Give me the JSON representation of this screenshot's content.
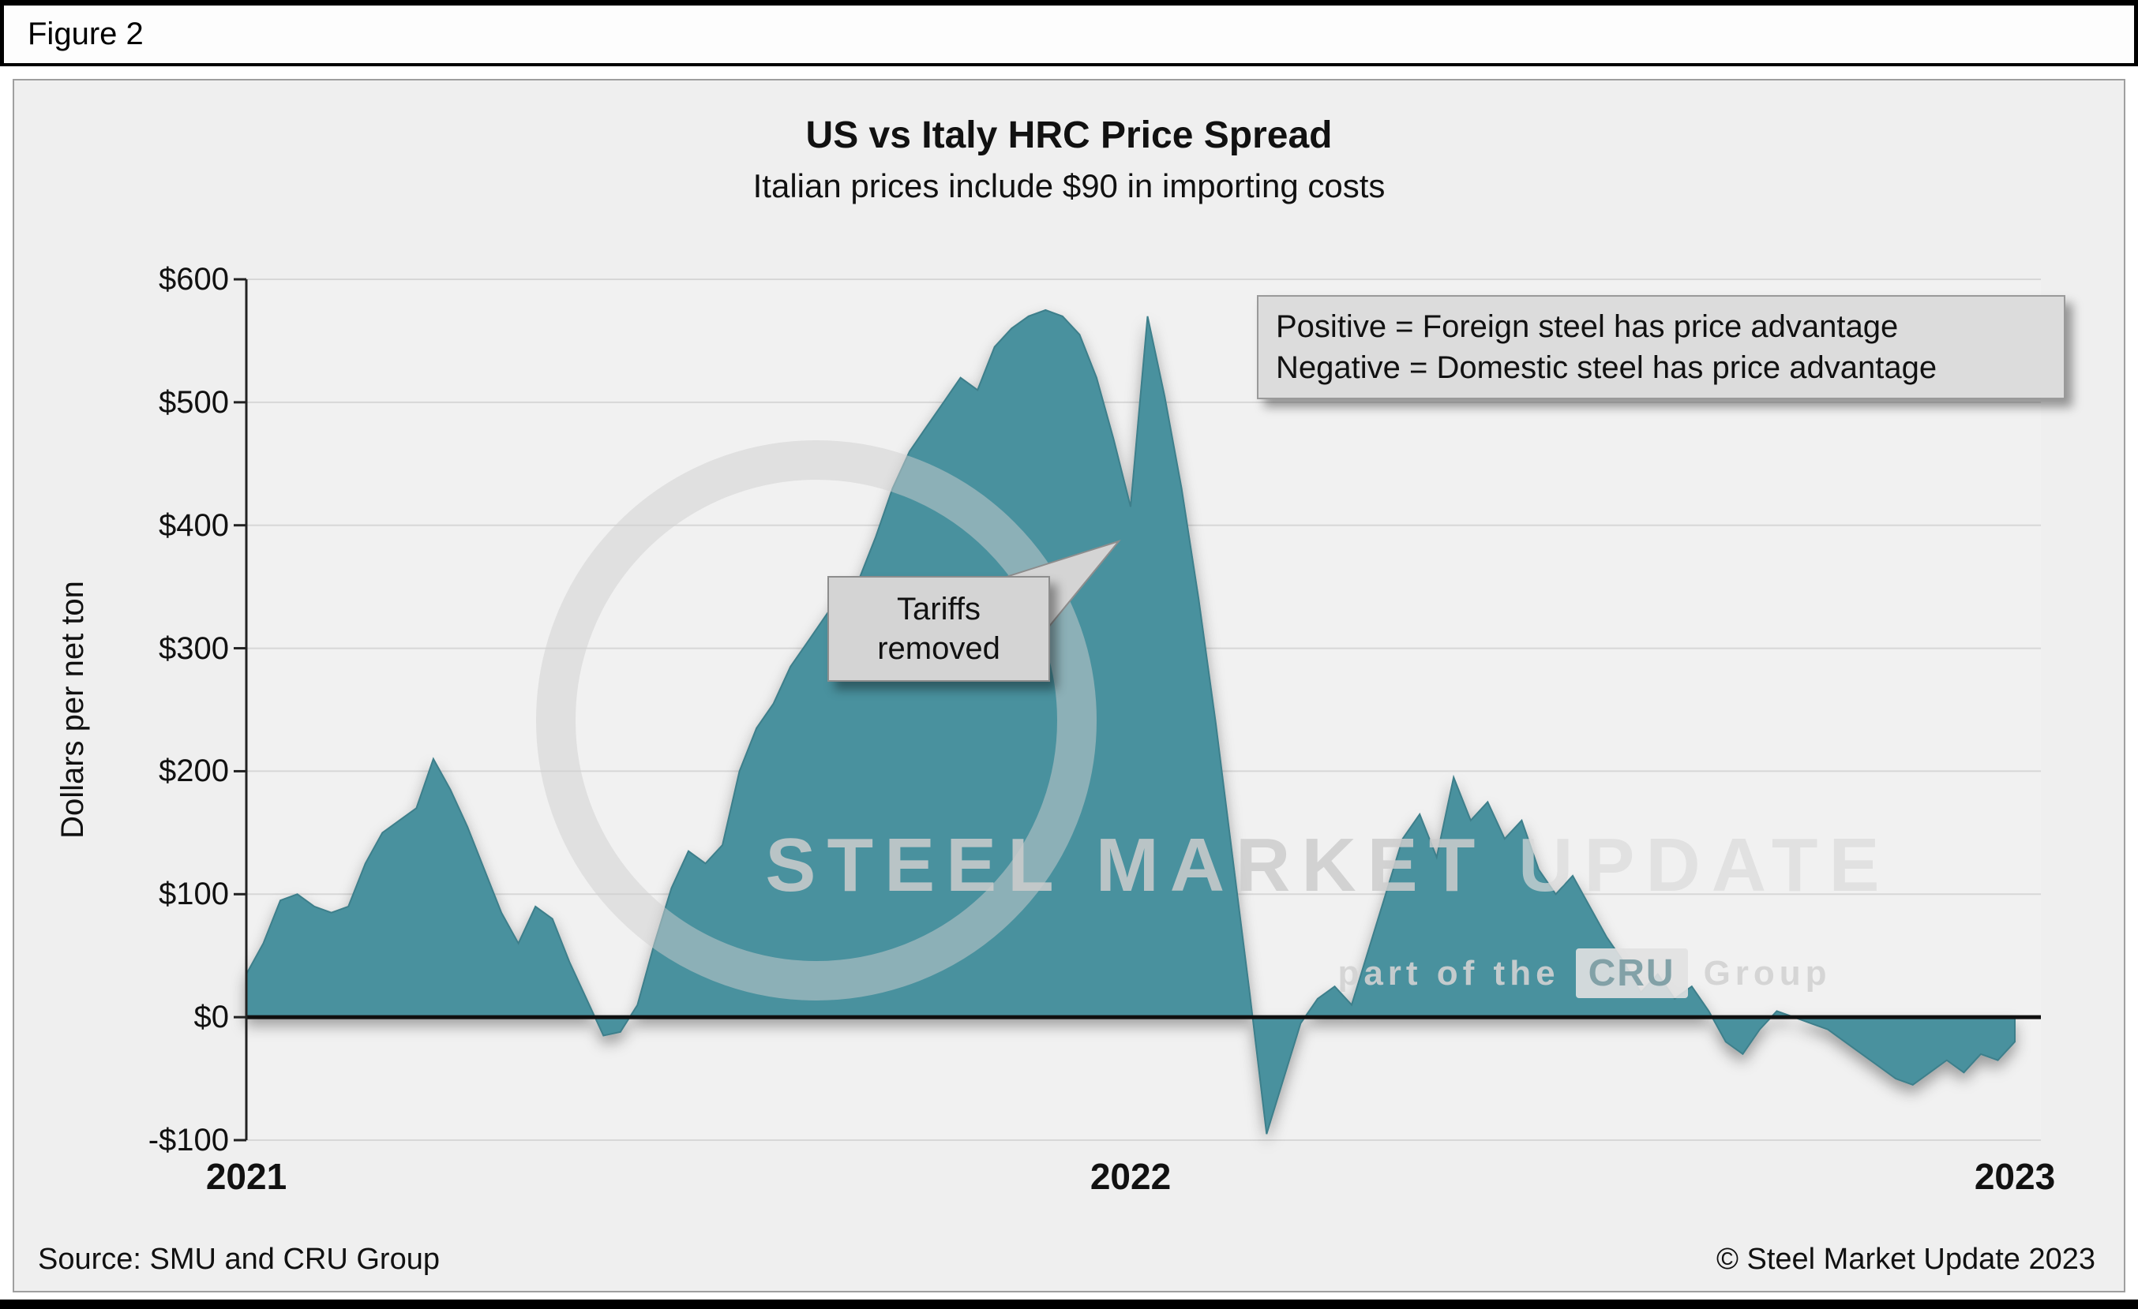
{
  "figure_label": "Figure 2",
  "chart_data": {
    "type": "area",
    "title": "US vs Italy HRC Price Spread",
    "subtitle": "Italian prices include $90 in importing costs",
    "ylabel": "Dollars per net ton",
    "ylim": [
      -100,
      600
    ],
    "grid": true,
    "y_ticks": [
      "$600",
      "$500",
      "$400",
      "$300",
      "$200",
      "$100",
      "$0",
      "-$100"
    ],
    "y_tick_values": [
      600,
      500,
      400,
      300,
      200,
      100,
      0,
      -100
    ],
    "x_ticks": [
      "2021",
      "2022",
      "2023"
    ],
    "x_range_years": [
      2021,
      2023
    ],
    "sampling": "weekly (approximate, read from chart)",
    "series_name": "US vs Italy HRC price spread, $ per net ton",
    "fill_color": "#4A919E",
    "stroke_color": "#3E7F8B",
    "zero_line": true,
    "values": [
      35,
      60,
      95,
      100,
      90,
      85,
      90,
      125,
      150,
      160,
      170,
      210,
      185,
      155,
      120,
      85,
      60,
      90,
      80,
      45,
      15,
      -15,
      -12,
      10,
      60,
      105,
      135,
      125,
      140,
      200,
      235,
      255,
      285,
      305,
      325,
      345,
      355,
      390,
      430,
      460,
      480,
      500,
      520,
      510,
      545,
      560,
      570,
      575,
      570,
      555,
      520,
      470,
      415,
      570,
      505,
      430,
      340,
      240,
      130,
      20,
      -95,
      -50,
      -5,
      15,
      25,
      10,
      55,
      100,
      145,
      165,
      130,
      195,
      160,
      175,
      145,
      160,
      120,
      100,
      115,
      90,
      65,
      45,
      20,
      35,
      15,
      25,
      5,
      -20,
      -30,
      -10,
      5,
      0,
      -5,
      -10,
      -20,
      -30,
      -40,
      -50,
      -55,
      -45,
      -35,
      -45,
      -30,
      -35,
      -20
    ],
    "annotation": {
      "text_lines": [
        "Tariffs",
        "removed"
      ],
      "points_to": {
        "x_frac_of_timeline": 0.49,
        "y_value": 390
      }
    },
    "legend_note_lines": [
      "Positive = Foreign steel has price advantage",
      "Negative = Domestic steel has price advantage"
    ],
    "legend_position": "top-right"
  },
  "watermark": {
    "brand_bold": "STEEL MARKET",
    "brand_light": "UPDATE",
    "tagline": "part of the",
    "cru_logo": "CRU",
    "group": "Group"
  },
  "footer": {
    "source": "Source: SMU and CRU Group",
    "copyright": "© Steel Market Update 2023"
  }
}
